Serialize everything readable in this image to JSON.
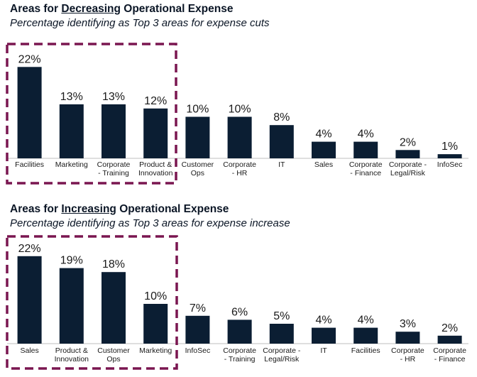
{
  "chart_data": [
    {
      "type": "bar",
      "title_parts": [
        "Areas for ",
        "Decreasing",
        " Operational Expense"
      ],
      "subtitle": "Percentage identifying as Top 3 areas for expense cuts",
      "categories": [
        "Facilities",
        "Marketing",
        "Corporate - Training",
        "Product & Innovation",
        "Customer Ops",
        "Corporate - HR",
        "IT",
        "Sales",
        "Corporate - Finance",
        "Corporate - Legal/Risk",
        "InfoSec"
      ],
      "category_lines": [
        [
          "Facilities"
        ],
        [
          "Marketing"
        ],
        [
          "Corporate",
          "- Training"
        ],
        [
          "Product &",
          "Innovation"
        ],
        [
          "Customer",
          "Ops"
        ],
        [
          "Corporate",
          "- HR"
        ],
        [
          "IT"
        ],
        [
          "Sales"
        ],
        [
          "Corporate",
          "- Finance"
        ],
        [
          "Corporate -",
          "Legal/Risk"
        ],
        [
          "InfoSec"
        ]
      ],
      "values": [
        22,
        13,
        13,
        12,
        10,
        10,
        8,
        4,
        4,
        2,
        1
      ],
      "value_labels": [
        "22%",
        "13%",
        "13%",
        "12%",
        "10%",
        "10%",
        "8%",
        "4%",
        "4%",
        "2%",
        "1%"
      ],
      "highlighted_count": 4,
      "bar_color": "#0b1e33",
      "highlight_color": "#7a1650"
    },
    {
      "type": "bar",
      "title_parts": [
        "Areas for ",
        "Increasing",
        " Operational Expense"
      ],
      "subtitle": "Percentage identifying as Top 3 areas for  expense increase",
      "categories": [
        "Sales",
        "Product & Innovation",
        "Customer Ops",
        "Marketing",
        "InfoSec",
        "Corporate - Training",
        "Corporate - Legal/Risk",
        "IT",
        "Facilities",
        "Corporate - HR",
        "Corporate - Finance"
      ],
      "category_lines": [
        [
          "Sales"
        ],
        [
          "Product &",
          "Innovation"
        ],
        [
          "Customer",
          "Ops"
        ],
        [
          "Marketing"
        ],
        [
          "InfoSec"
        ],
        [
          "Corporate",
          "- Training"
        ],
        [
          "Corporate -",
          "Legal/Risk"
        ],
        [
          "IT"
        ],
        [
          "Facilities"
        ],
        [
          "Corporate",
          "- HR"
        ],
        [
          "Corporate",
          "- Finance"
        ]
      ],
      "values": [
        22,
        19,
        18,
        10,
        7,
        6,
        5,
        4,
        4,
        3,
        2
      ],
      "value_labels": [
        "22%",
        "19%",
        "18%",
        "10%",
        "7%",
        "6%",
        "5%",
        "4%",
        "4%",
        "3%",
        "2%"
      ],
      "highlighted_count": 4,
      "bar_color": "#0b1e33",
      "highlight_color": "#7a1650"
    }
  ]
}
